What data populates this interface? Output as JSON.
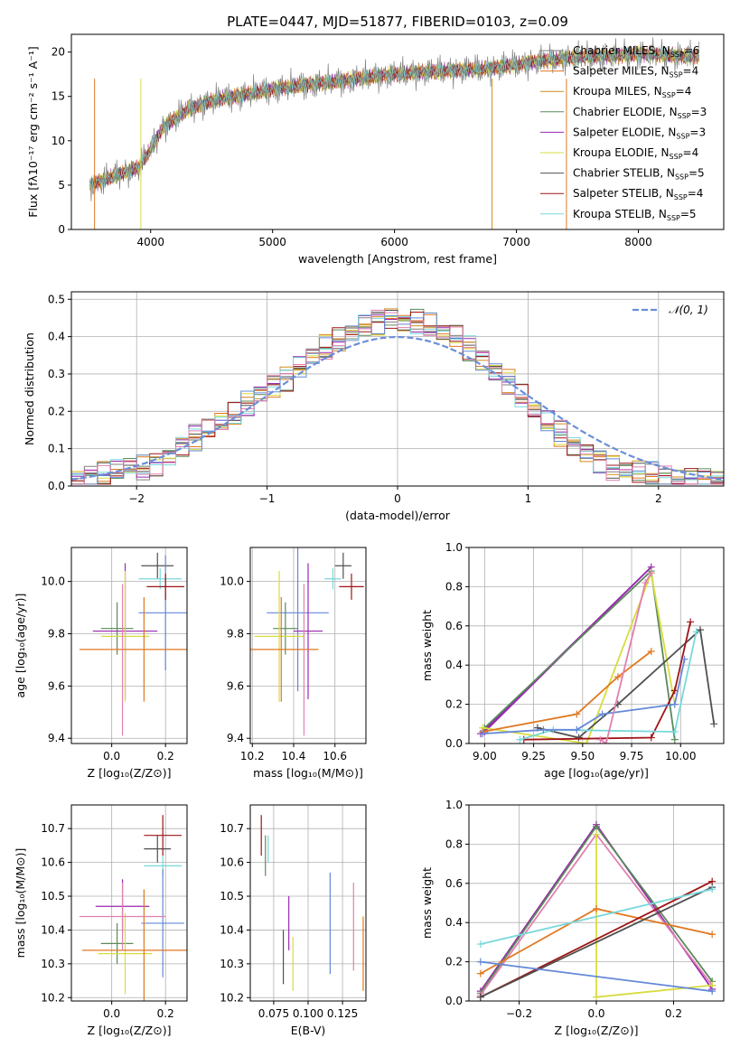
{
  "colors": [
    "#808080",
    "#e07820",
    "#d08c1c",
    "#5a8a5a",
    "#9a28b0",
    "#d8dc40",
    "#505050",
    "#a01418",
    "#78d8dc",
    "#6488d8",
    "#e080b0"
  ],
  "chart_data": [
    {
      "type": "line",
      "title": "PLATE=0447, MJD=51877, FIBERID=0103, z=0.09",
      "xlabel": "wavelength [Angstrom, rest frame]",
      "ylabel": "Flux [fλ10⁻¹⁷ erg cm⁻² s⁻¹ A⁻¹]",
      "xlim": [
        3350,
        8700
      ],
      "ylim": [
        0,
        22
      ],
      "xticks": [
        4000,
        5000,
        6000,
        7000,
        8000
      ],
      "yticks": [
        0,
        5,
        10,
        15,
        20
      ],
      "legend_position": "right",
      "legend": [
        "Chabrier MILES, N_SSP=6",
        "Salpeter MILES, N_SSP=4",
        "Kroupa MILES, N_SSP=4",
        "Chabrier ELODIE, N_SSP=3",
        "Salpeter ELODIE, N_SSP=3",
        "Kroupa ELODIE, N_SSP=4",
        "Chabrier STELIB, N_SSP=5",
        "Salpeter STELIB, N_SSP=4",
        "Kroupa STELIB, N_SSP=5"
      ],
      "legend_colors": [
        "#808080",
        "#e07820",
        "#d08c1c",
        "#5a8a5a",
        "#9a28b0",
        "#d8dc40",
        "#505050",
        "#a01418",
        "#78d8dc"
      ],
      "spectrum": {
        "x": [
          3500,
          3600,
          3700,
          3800,
          3900,
          4000,
          4100,
          4200,
          4300,
          4400,
          4500,
          4600,
          4700,
          4800,
          5000,
          5200,
          5400,
          5600,
          5800,
          6000,
          6200,
          6400,
          6600,
          6800,
          7000,
          7200,
          7400,
          7600,
          7800,
          8000,
          8200,
          8400
        ],
        "y": [
          5.0,
          5.5,
          6.0,
          6.5,
          7.0,
          9.0,
          11.5,
          12.5,
          13.5,
          14.0,
          14.5,
          14.8,
          15.0,
          15.3,
          15.8,
          16.2,
          16.5,
          16.8,
          17.2,
          17.5,
          17.7,
          17.9,
          18.0,
          18.2,
          18.6,
          19.0,
          19.3,
          19.5,
          19.6,
          19.8,
          19.7,
          19.5
        ]
      }
    },
    {
      "type": "histogram",
      "xlabel": "(data-model)/error",
      "ylabel": "Normed distribution",
      "xlim": [
        -2.5,
        2.5
      ],
      "ylim": [
        0,
        0.52
      ],
      "xticks": [
        -2,
        -1,
        0,
        1,
        2
      ],
      "yticks": [
        0.0,
        0.1,
        0.2,
        0.3,
        0.4,
        0.5
      ],
      "legend": [
        "𝒩(0, 1)"
      ],
      "bin_width": 0.1,
      "bins_start": -2.5,
      "histogram": [
        0.02,
        0.025,
        0.03,
        0.04,
        0.05,
        0.05,
        0.06,
        0.08,
        0.11,
        0.13,
        0.15,
        0.17,
        0.19,
        0.22,
        0.25,
        0.27,
        0.29,
        0.32,
        0.35,
        0.37,
        0.39,
        0.41,
        0.43,
        0.44,
        0.45,
        0.44,
        0.44,
        0.43,
        0.41,
        0.4,
        0.37,
        0.34,
        0.31,
        0.28,
        0.24,
        0.2,
        0.17,
        0.14,
        0.11,
        0.09,
        0.07,
        0.05,
        0.04,
        0.035,
        0.03,
        0.025,
        0.02,
        0.02,
        0.02,
        0.02
      ]
    },
    {
      "type": "scatter",
      "xlabel": "Z [log₁₀(Z/Z⊙)]",
      "ylabel": "age  [log₁₀(age/yr)]",
      "xlim": [
        -0.15,
        0.28
      ],
      "ylim": [
        9.38,
        10.13
      ],
      "xticks": [
        0.0,
        0.2
      ],
      "yticks": [
        9.4,
        9.6,
        9.8,
        10.0
      ],
      "points": [
        {
          "x": 0.17,
          "y": 10.06,
          "xerr": 0.06,
          "yerr": 0.05,
          "c": 6
        },
        {
          "x": 0.18,
          "y": 10.01,
          "xerr": 0.08,
          "yerr": 0.04,
          "c": 8
        },
        {
          "x": 0.2,
          "y": 9.88,
          "xerr": 0.1,
          "yerr": 0.22,
          "c": 9
        },
        {
          "x": 0.02,
          "y": 9.82,
          "xerr": 0.06,
          "yerr": 0.1,
          "c": 3
        },
        {
          "x": 0.05,
          "y": 9.81,
          "xerr": 0.12,
          "yerr": 0.26,
          "c": 4
        },
        {
          "x": 0.05,
          "y": 9.79,
          "xerr": 0.09,
          "yerr": 0.25,
          "c": 5
        },
        {
          "x": 0.12,
          "y": 9.74,
          "xerr": 0.24,
          "yerr": 0.2,
          "c": 1
        },
        {
          "x": 0.2,
          "y": 9.98,
          "xerr": 0.07,
          "yerr": 0.05,
          "c": 7
        },
        {
          "x": 0.04,
          "y": 9.7,
          "xerr": 0.0,
          "yerr": 0.29,
          "c": 10
        }
      ]
    },
    {
      "type": "scatter",
      "xlabel": "mass [log₁₀(M/M⊙)]",
      "ylabel": "",
      "xlim": [
        10.19,
        10.75
      ],
      "ylim": [
        9.38,
        10.13
      ],
      "xticks": [
        10.2,
        10.4,
        10.6
      ],
      "yticks": [
        9.4,
        9.6,
        9.8,
        10.0
      ],
      "points": [
        {
          "x": 10.64,
          "y": 10.06,
          "xerr": 0.04,
          "yerr": 0.05,
          "c": 6
        },
        {
          "x": 10.59,
          "y": 10.01,
          "xerr": 0.04,
          "yerr": 0.04,
          "c": 8
        },
        {
          "x": 10.42,
          "y": 9.88,
          "xerr": 0.15,
          "yerr": 0.3,
          "c": 9
        },
        {
          "x": 10.36,
          "y": 9.82,
          "xerr": 0.06,
          "yerr": 0.1,
          "c": 3
        },
        {
          "x": 10.47,
          "y": 9.81,
          "xerr": 0.07,
          "yerr": 0.26,
          "c": 4
        },
        {
          "x": 10.33,
          "y": 9.79,
          "xerr": 0.12,
          "yerr": 0.25,
          "c": 5
        },
        {
          "x": 10.34,
          "y": 9.74,
          "xerr": 0.18,
          "yerr": 0.2,
          "c": 1
        },
        {
          "x": 10.68,
          "y": 9.98,
          "xerr": 0.06,
          "yerr": 0.05,
          "c": 7
        },
        {
          "x": 10.45,
          "y": 9.7,
          "xerr": 0.0,
          "yerr": 0.29,
          "c": 10
        }
      ]
    },
    {
      "type": "line",
      "xlabel": "age  [log₁₀(age/yr)]",
      "ylabel": "mass weight",
      "xlim": [
        8.92,
        10.22
      ],
      "ylim": [
        0,
        1.0
      ],
      "xticks": [
        9.0,
        9.25,
        9.5,
        9.75,
        10.0
      ],
      "yticks": [
        0.0,
        0.2,
        0.4,
        0.6,
        0.8,
        1.0
      ],
      "series": [
        {
          "c": 4,
          "x": [
            8.98,
            9.85,
            9.0
          ],
          "y": [
            0.05,
            0.9,
            0.06
          ]
        },
        {
          "c": 3,
          "x": [
            9.0,
            9.85,
            9.97
          ],
          "y": [
            0.08,
            0.88,
            0.02
          ]
        },
        {
          "c": 5,
          "x": [
            8.99,
            9.52,
            9.85,
            9.97
          ],
          "y": [
            0.08,
            0.0,
            0.87,
            0.2
          ]
        },
        {
          "c": 1,
          "x": [
            8.99,
            9.47,
            9.68,
            9.85
          ],
          "y": [
            0.06,
            0.15,
            0.34,
            0.47
          ]
        },
        {
          "c": 6,
          "x": [
            9.27,
            9.48,
            9.68,
            10.1,
            10.17
          ],
          "y": [
            0.08,
            0.03,
            0.2,
            0.58,
            0.1
          ]
        },
        {
          "c": 7,
          "x": [
            9.2,
            9.85,
            9.97,
            10.05
          ],
          "y": [
            0.02,
            0.03,
            0.27,
            0.62
          ]
        },
        {
          "c": 8,
          "x": [
            9.18,
            9.35,
            9.97,
            10.08
          ],
          "y": [
            0.02,
            0.07,
            0.06,
            0.57
          ]
        },
        {
          "c": 9,
          "x": [
            8.99,
            9.3,
            9.47,
            9.6,
            9.97,
            10.02
          ],
          "y": [
            0.05,
            0.07,
            0.07,
            0.15,
            0.2,
            0.43
          ]
        },
        {
          "c": 10,
          "x": [
            9.59,
            9.62,
            9.82,
            9.85
          ],
          "y": [
            0.02,
            0.0,
            0.82,
            0.87
          ]
        }
      ]
    },
    {
      "type": "scatter",
      "xlabel": "Z [log₁₀(Z/Z⊙)]",
      "ylabel": "mass [log₁₀(M/M⊙)]",
      "xlim": [
        -0.15,
        0.28
      ],
      "ylim": [
        10.19,
        10.77
      ],
      "xticks": [
        0.0,
        0.2
      ],
      "yticks": [
        10.2,
        10.3,
        10.4,
        10.5,
        10.6,
        10.7
      ],
      "points": [
        {
          "x": 0.17,
          "y": 10.64,
          "xerr": 0.05,
          "yerr": 0.04,
          "c": 6
        },
        {
          "x": 0.19,
          "y": 10.59,
          "xerr": 0.07,
          "yerr": 0.03,
          "c": 8
        },
        {
          "x": 0.19,
          "y": 10.42,
          "xerr": 0.08,
          "yerr": 0.16,
          "c": 9
        },
        {
          "x": 0.02,
          "y": 10.36,
          "xerr": 0.06,
          "yerr": 0.06,
          "c": 3
        },
        {
          "x": 0.04,
          "y": 10.47,
          "xerr": 0.1,
          "yerr": 0.08,
          "c": 4
        },
        {
          "x": 0.05,
          "y": 10.33,
          "xerr": 0.1,
          "yerr": 0.12,
          "c": 5
        },
        {
          "x": 0.12,
          "y": 10.34,
          "xerr": 0.23,
          "yerr": 0.18,
          "c": 1
        },
        {
          "x": 0.19,
          "y": 10.68,
          "xerr": 0.07,
          "yerr": 0.06,
          "c": 7
        },
        {
          "x": 0.04,
          "y": 10.44,
          "xerr": 0.16,
          "yerr": 0.1,
          "c": 10
        }
      ]
    },
    {
      "type": "scatter",
      "xlabel": "E(B-V)",
      "ylabel": "",
      "xlim": [
        0.058,
        0.142
      ],
      "ylim": [
        10.19,
        10.77
      ],
      "xticks": [
        0.075,
        0.1,
        0.125
      ],
      "xtick_labels": [
        "0.075",
        "0.100",
        "0.125"
      ],
      "yticks": [
        10.2,
        10.3,
        10.4,
        10.5,
        10.6,
        10.7
      ],
      "points": [
        {
          "x": 0.066,
          "y": 10.68,
          "xerr": 0,
          "yerr": 0.06,
          "c": 7
        },
        {
          "x": 0.069,
          "y": 10.62,
          "xerr": 0,
          "yerr": 0.06,
          "c": 3
        },
        {
          "x": 0.071,
          "y": 10.64,
          "xerr": 0,
          "yerr": 0.04,
          "c": 8
        },
        {
          "x": 0.082,
          "y": 10.32,
          "xerr": 0,
          "yerr": 0.08,
          "c": 6
        },
        {
          "x": 0.086,
          "y": 10.42,
          "xerr": 0,
          "yerr": 0.08,
          "c": 4
        },
        {
          "x": 0.089,
          "y": 10.3,
          "xerr": 0,
          "yerr": 0.08,
          "c": 5
        },
        {
          "x": 0.116,
          "y": 10.42,
          "xerr": 0,
          "yerr": 0.15,
          "c": 9
        },
        {
          "x": 0.133,
          "y": 10.41,
          "xerr": 0,
          "yerr": 0.13,
          "c": 10
        },
        {
          "x": 0.14,
          "y": 10.33,
          "xerr": 0,
          "yerr": 0.11,
          "c": 1
        }
      ]
    },
    {
      "type": "line",
      "xlabel": "Z [log₁₀(Z/Z⊙)]",
      "ylabel": "mass weight",
      "xlim": [
        -0.33,
        0.33
      ],
      "ylim": [
        0,
        1.0
      ],
      "xticks": [
        -0.2,
        0.0,
        0.2
      ],
      "yticks": [
        0.0,
        0.2,
        0.4,
        0.6,
        0.8,
        1.0
      ],
      "series": [
        {
          "c": 4,
          "x": [
            -0.3,
            0.0,
            0.3
          ],
          "y": [
            0.05,
            0.9,
            0.06
          ]
        },
        {
          "c": 3,
          "x": [
            -0.3,
            0.0,
            0.3
          ],
          "y": [
            0.04,
            0.89,
            0.1
          ]
        },
        {
          "c": 10,
          "x": [
            -0.3,
            0.0,
            0.3
          ],
          "y": [
            0.03,
            0.85,
            0.08
          ]
        },
        {
          "c": 5,
          "x": [
            0.0,
            0.0,
            0.3
          ],
          "y": [
            0.85,
            0.02,
            0.08
          ]
        },
        {
          "c": 1,
          "x": [
            -0.3,
            0.0,
            0.3
          ],
          "y": [
            0.14,
            0.47,
            0.34
          ]
        },
        {
          "c": 7,
          "x": [
            -0.3,
            0.3
          ],
          "y": [
            0.02,
            0.61
          ]
        },
        {
          "c": 6,
          "x": [
            -0.3,
            0.3
          ],
          "y": [
            0.02,
            0.58
          ]
        },
        {
          "c": 8,
          "x": [
            -0.3,
            0.3
          ],
          "y": [
            0.29,
            0.57
          ]
        },
        {
          "c": 9,
          "x": [
            -0.3,
            0.3
          ],
          "y": [
            0.2,
            0.05
          ]
        }
      ]
    }
  ]
}
